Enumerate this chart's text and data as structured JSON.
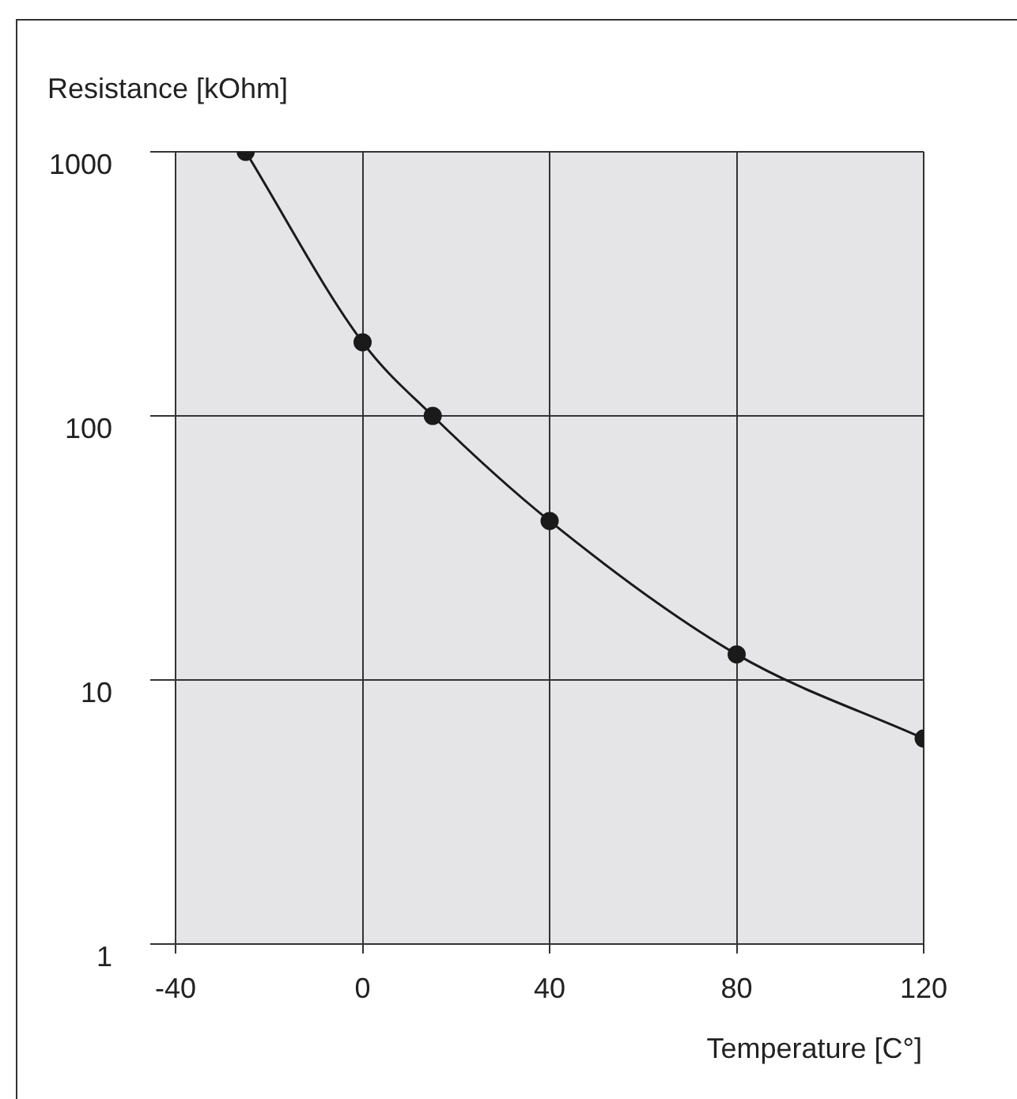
{
  "chart_data": {
    "type": "line",
    "xlabel": "Temperature [C°]",
    "ylabel": "Resistance [kOhm]",
    "x": [
      -25,
      0,
      15,
      40,
      80,
      120
    ],
    "series": [
      {
        "color": "#1a1a1a",
        "values": [
          1000,
          190,
          100,
          40,
          12.5,
          6
        ]
      }
    ],
    "xlim": [
      -40,
      120
    ],
    "xticks": [
      -40,
      0,
      40,
      80,
      120
    ],
    "ylim": [
      1,
      1000
    ],
    "yticks": [
      1,
      10,
      100,
      1000
    ],
    "log": "y",
    "grid": true,
    "marker": "circle",
    "line_style": "solid",
    "legend": false
  }
}
